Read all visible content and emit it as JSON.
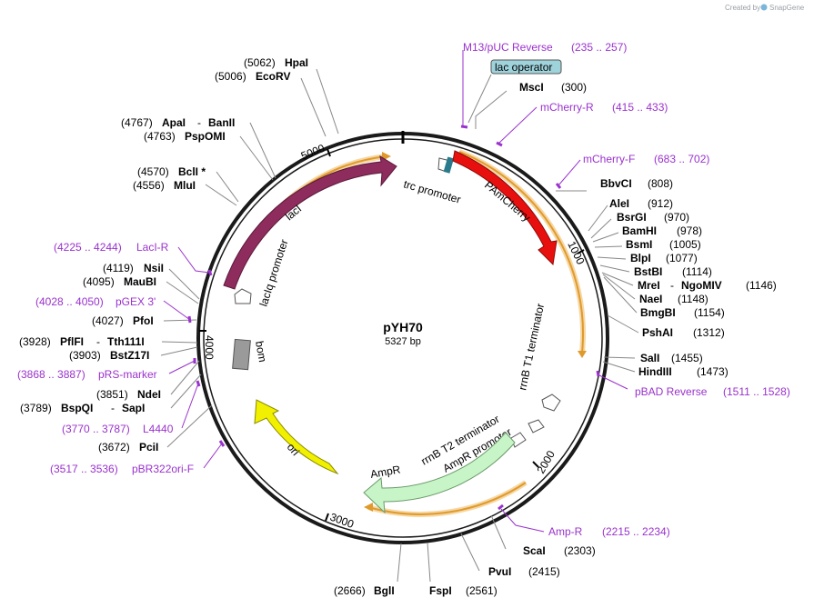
{
  "plasmid": {
    "name": "pYH70",
    "size": "5327 bp"
  },
  "credit": {
    "prefix": "Created by",
    "brand": "SnapGene"
  },
  "colors": {
    "backbone": "#1a1a1a",
    "lacI": "#8e2c5d",
    "PAmCherry": "#e8100f",
    "AmpR": "#c8f5c8",
    "ori": "#f0f000",
    "bom": "#9a9a9a",
    "primer": "#9a32cd",
    "operator": "#9fd3dc",
    "orf_arrow": "#e6a23c"
  },
  "ticks": [
    "1000",
    "2000",
    "3000",
    "4000",
    "5000"
  ],
  "features": {
    "lacI": "lacI",
    "lacIq_promoter": "lacIq promoter",
    "trc_promoter": "trc promoter",
    "PAmCherry": "PAmCherry",
    "rrnB_T1": "rrnB T1 terminator",
    "rrnB_T2": "rrnB T2 terminator",
    "AmpR_promoter": "AmpR promoter",
    "AmpR": "AmpR",
    "ori": "ori",
    "bom": "bom",
    "lac_operator": "lac operator"
  },
  "sites": [
    {
      "name": "HpaI",
      "pos": "(5062)"
    },
    {
      "name": "EcoRV",
      "pos": "(5006)"
    },
    {
      "name": "ApaI",
      "suffix": "BanII",
      "pos": "(4767)"
    },
    {
      "name": "PspOMI",
      "pos": "(4763)"
    },
    {
      "name": "BclI *",
      "pos": "(4570)"
    },
    {
      "name": "MluI",
      "pos": "(4556)"
    },
    {
      "name": "NsiI",
      "pos": "(4119)"
    },
    {
      "name": "MauBI",
      "pos": "(4095)"
    },
    {
      "name": "PfoI",
      "pos": "(4027)"
    },
    {
      "name": "PflFI",
      "suffix": "Tth111I",
      "pos": "(3928)"
    },
    {
      "name": "BstZ17I",
      "pos": "(3903)"
    },
    {
      "name": "NdeI",
      "pos": "(3851)"
    },
    {
      "name": "BspQI",
      "suffix": "SapI",
      "pos": "(3789)"
    },
    {
      "name": "PciI",
      "pos": "(3672)"
    },
    {
      "name": "BglI",
      "pos": "(2666)"
    },
    {
      "name": "FspI",
      "pos": "(2561)"
    },
    {
      "name": "PvuI",
      "pos": "(2415)"
    },
    {
      "name": "ScaI",
      "pos": "(2303)"
    },
    {
      "name": "MscI",
      "pos": "(300)"
    },
    {
      "name": "BbvCI",
      "pos": "(808)"
    },
    {
      "name": "AleI",
      "pos": "(912)"
    },
    {
      "name": "BsrGI",
      "pos": "(970)"
    },
    {
      "name": "BamHI",
      "pos": "(978)"
    },
    {
      "name": "BsmI",
      "pos": "(1005)"
    },
    {
      "name": "BlpI",
      "pos": "(1077)"
    },
    {
      "name": "BstBI",
      "pos": "(1114)"
    },
    {
      "name": "MreI",
      "suffix": "NgoMIV",
      "pos": "(1146)"
    },
    {
      "name": "NaeI",
      "pos": "(1148)"
    },
    {
      "name": "BmgBI",
      "pos": "(1154)"
    },
    {
      "name": "PshAI",
      "pos": "(1312)"
    },
    {
      "name": "SalI",
      "pos": "(1455)"
    },
    {
      "name": "HindIII",
      "pos": "(1473)"
    }
  ],
  "primers": [
    {
      "name": "M13/pUC Reverse",
      "range": "(235 .. 257)"
    },
    {
      "name": "mCherry-R",
      "range": "(415 .. 433)"
    },
    {
      "name": "mCherry-F",
      "range": "(683 .. 702)"
    },
    {
      "name": "pBAD Reverse",
      "range": "(1511 .. 1528)"
    },
    {
      "name": "Amp-R",
      "range": "(2215 .. 2234)"
    },
    {
      "name": "LacI-R",
      "range": "(4225 .. 4244)"
    },
    {
      "name": "pGEX 3'",
      "range": "(4028 .. 4050)"
    },
    {
      "name": "pRS-marker",
      "range": "(3868 .. 3887)"
    },
    {
      "name": "L4440",
      "range": "(3770 .. 3787)"
    },
    {
      "name": "pBR322ori-F",
      "range": "(3517 .. 3536)"
    }
  ]
}
